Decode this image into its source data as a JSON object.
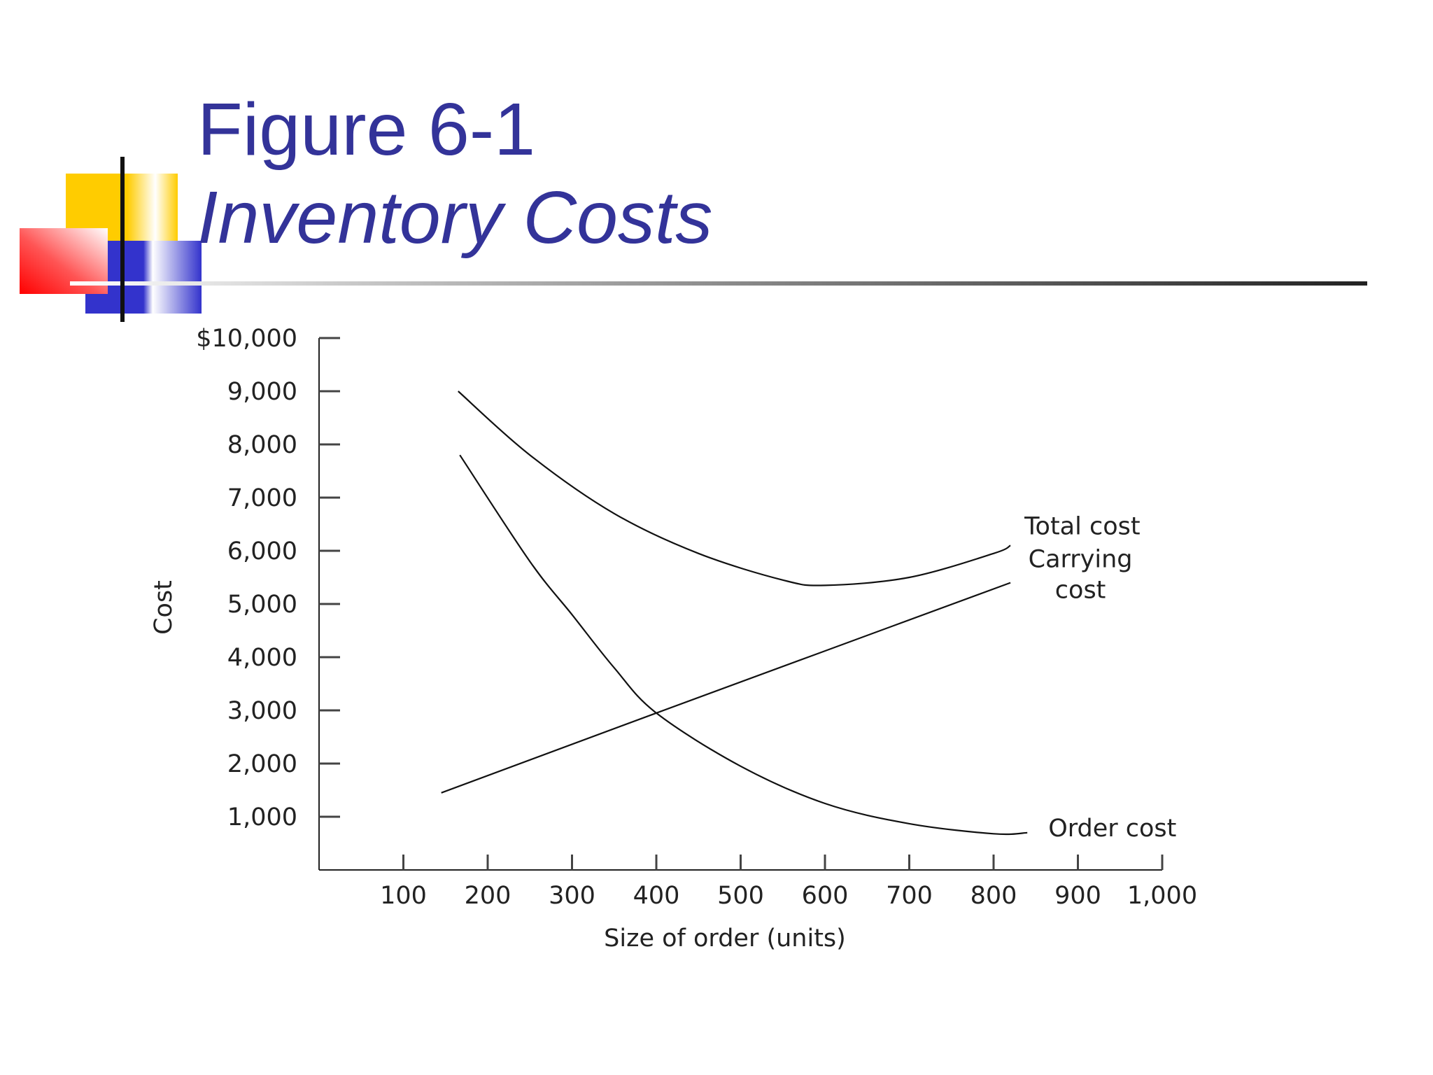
{
  "slide": {
    "title": "Figure 6-1",
    "subtitle": "Inventory Costs",
    "colors": {
      "title": "#333399",
      "deco_yellow": "#ffcc00",
      "deco_red": "#ff0000",
      "deco_blue": "#3333cc",
      "rule": "#333333"
    }
  },
  "chart_data": {
    "type": "line",
    "xlabel": "Size of order (units)",
    "ylabel": "Cost",
    "xlim": [
      0,
      1000
    ],
    "ylim": [
      0,
      10000
    ],
    "x_ticks": [
      {
        "value": 100,
        "label": "100"
      },
      {
        "value": 200,
        "label": "200"
      },
      {
        "value": 300,
        "label": "300"
      },
      {
        "value": 400,
        "label": "400"
      },
      {
        "value": 500,
        "label": "500"
      },
      {
        "value": 600,
        "label": "600"
      },
      {
        "value": 700,
        "label": "700"
      },
      {
        "value": 800,
        "label": "800"
      },
      {
        "value": 900,
        "label": "900"
      },
      {
        "value": 1000,
        "label": "1,000"
      }
    ],
    "y_ticks": [
      {
        "value": 1000,
        "label": "1,000"
      },
      {
        "value": 2000,
        "label": "2,000"
      },
      {
        "value": 3000,
        "label": "3,000"
      },
      {
        "value": 4000,
        "label": "4,000"
      },
      {
        "value": 5000,
        "label": "5,000"
      },
      {
        "value": 6000,
        "label": "6,000"
      },
      {
        "value": 7000,
        "label": "7,000"
      },
      {
        "value": 8000,
        "label": "8,000"
      },
      {
        "value": 9000,
        "label": "9,000"
      },
      {
        "value": 10000,
        "label": "$10,000"
      }
    ],
    "grid": false,
    "legend": "none",
    "series": [
      {
        "name": "Total cost",
        "label_lines": [
          "Total cost"
        ],
        "x": [
          165,
          250,
          350,
          450,
          550,
          600,
          700,
          800,
          820
        ],
        "y": [
          9000,
          7800,
          6700,
          5950,
          5450,
          5350,
          5500,
          5950,
          6100
        ]
      },
      {
        "name": "Carrying cost",
        "label_lines": [
          "Carrying",
          "cost"
        ],
        "x": [
          145,
          400,
          820
        ],
        "y": [
          1450,
          2950,
          5400
        ]
      },
      {
        "name": "Order cost",
        "label_lines": [
          "Order cost"
        ],
        "x": [
          167,
          250,
          300,
          350,
          400,
          500,
          600,
          700,
          800,
          840
        ],
        "y": [
          7800,
          5800,
          4800,
          3800,
          2950,
          1950,
          1250,
          870,
          680,
          700
        ]
      }
    ]
  }
}
